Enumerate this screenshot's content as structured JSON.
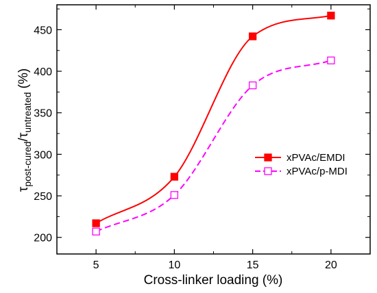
{
  "chart_data": {
    "type": "line",
    "x": [
      5,
      10,
      15,
      20
    ],
    "xlabel": "Cross-linker loading (%)",
    "ylabel": {
      "symbol": "τ",
      "sub1": "post-cured",
      "sep": "/",
      "sub2": "untreated",
      "unit": " (%)"
    },
    "xlim": [
      2.5,
      22.5
    ],
    "ylim": [
      180,
      480
    ],
    "xticks": [
      5,
      10,
      15,
      20
    ],
    "yticks": [
      200,
      250,
      300,
      350,
      400,
      450
    ],
    "grid": false,
    "legend_position": "right-middle",
    "series": [
      {
        "name": "xPVAc/EMDI",
        "values": [
          217,
          273,
          442,
          467
        ],
        "color": "#ff0000",
        "marker": "filled-square",
        "line": "solid"
      },
      {
        "name": "xPVAc/p-MDI",
        "values": [
          207,
          251,
          383,
          413
        ],
        "color": "#ff00ff",
        "marker": "open-square",
        "line": "dashed"
      }
    ]
  }
}
